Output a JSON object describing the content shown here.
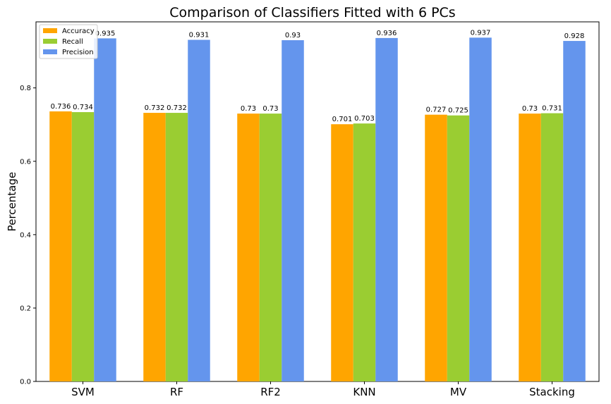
{
  "chart_data": {
    "type": "bar",
    "title": "Comparison of Classifiers Fitted with 6 PCs",
    "xlabel": "",
    "ylabel": "Percentage",
    "ylim": [
      0,
      0.98
    ],
    "yticks": [
      "0.0",
      "0.2",
      "0.4",
      "0.6",
      "0.8"
    ],
    "categories": [
      "SVM",
      "RF",
      "RF2",
      "KNN",
      "MV",
      "Stacking"
    ],
    "series": [
      {
        "name": "Accuracy",
        "color": "#ffa500",
        "values": [
          0.736,
          0.732,
          0.73,
          0.701,
          0.727,
          0.73
        ],
        "labels": [
          "0.736",
          "0.732",
          "0.73",
          "0.701",
          "0.727",
          "0.73"
        ]
      },
      {
        "name": "Recall",
        "color": "#9acd32",
        "values": [
          0.734,
          0.732,
          0.73,
          0.703,
          0.725,
          0.731
        ],
        "labels": [
          "0.734",
          "0.732",
          "0.73",
          "0.703",
          "0.725",
          "0.731"
        ]
      },
      {
        "name": "Precision",
        "color": "#6495ed",
        "values": [
          0.935,
          0.931,
          0.93,
          0.936,
          0.937,
          0.928
        ],
        "labels": [
          "0.935",
          "0.931",
          "0.93",
          "0.936",
          "0.937",
          "0.928"
        ]
      }
    ],
    "grid": false,
    "legend_position": "top-left"
  }
}
